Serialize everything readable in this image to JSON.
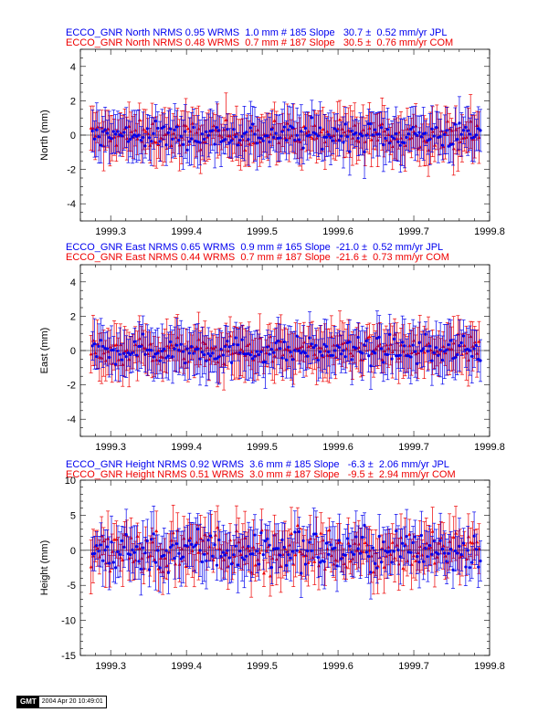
{
  "chart_data": [
    {
      "type": "scatter",
      "title_lines": [
        {
          "text": "ECCO_GNR North NRMS 0.95 WRMS  1.0 mm # 185 Slope   30.7 ±  0.52 mm/yr JPL",
          "color": "#0000ee"
        },
        {
          "text": "ECCO_GNR North NRMS 0.48 WRMS  0.7 mm # 187 Slope   30.5 ±  0.76 mm/yr COM",
          "color": "#ee0000"
        }
      ],
      "ylabel": "North (mm)",
      "xlim": [
        1999.26,
        1999.8
      ],
      "ylim": [
        -5,
        5
      ],
      "xticks": [
        1999.3,
        1999.4,
        1999.5,
        1999.6,
        1999.7,
        1999.8
      ],
      "yticks": [
        -4,
        -2,
        0,
        2,
        4
      ],
      "series": [
        {
          "name": "JPL",
          "color": "#0000ee",
          "marker": "circle",
          "n": 185,
          "nrms": 0.95,
          "wrms_mm": 1.0,
          "slope": 30.7,
          "slope_sigma": 0.52
        },
        {
          "name": "COM",
          "color": "#ee0000",
          "marker": "triangle",
          "n": 187,
          "nrms": 0.48,
          "wrms_mm": 0.7,
          "slope": 30.5,
          "slope_sigma": 0.76
        }
      ],
      "note": "residual time series scattered approximately within ±1.5 mm with error bars ~±1 mm"
    },
    {
      "type": "scatter",
      "title_lines": [
        {
          "text": "ECCO_GNR East NRMS 0.65 WRMS  0.9 mm # 165 Slope  -21.0 ±  0.52 mm/yr JPL",
          "color": "#0000ee"
        },
        {
          "text": "ECCO_GNR East NRMS 0.44 WRMS  0.7 mm # 187 Slope  -21.6 ±  0.73 mm/yr COM",
          "color": "#ee0000"
        }
      ],
      "ylabel": "East (mm)",
      "xlim": [
        1999.26,
        1999.8
      ],
      "ylim": [
        -5,
        5
      ],
      "xticks": [
        1999.3,
        1999.4,
        1999.5,
        1999.6,
        1999.7,
        1999.8
      ],
      "yticks": [
        -4,
        -2,
        0,
        2,
        4
      ],
      "series": [
        {
          "name": "JPL",
          "color": "#0000ee",
          "marker": "circle",
          "n": 165,
          "nrms": 0.65,
          "wrms_mm": 0.9,
          "slope": -21.0,
          "slope_sigma": 0.52
        },
        {
          "name": "COM",
          "color": "#ee0000",
          "marker": "triangle",
          "n": 187,
          "nrms": 0.44,
          "wrms_mm": 0.7,
          "slope": -21.6,
          "slope_sigma": 0.73
        }
      ]
    },
    {
      "type": "scatter",
      "title_lines": [
        {
          "text": "ECCO_GNR Height NRMS 0.92 WRMS  3.6 mm # 185 Slope   -6.3 ±  2.06 mm/yr JPL",
          "color": "#0000ee"
        },
        {
          "text": "ECCO_GNR Height NRMS 0.51 WRMS  3.0 mm # 187 Slope   -9.5 ±  2.94 mm/yr COM",
          "color": "#ee0000"
        }
      ],
      "ylabel": "Height (mm)",
      "xlim": [
        1999.26,
        1999.8
      ],
      "ylim": [
        -15,
        10
      ],
      "xticks": [
        1999.3,
        1999.4,
        1999.5,
        1999.6,
        1999.7,
        1999.8
      ],
      "yticks": [
        -15,
        -10,
        -5,
        0,
        5,
        10
      ],
      "series": [
        {
          "name": "JPL",
          "color": "#0000ee",
          "marker": "circle",
          "n": 185,
          "nrms": 0.92,
          "wrms_mm": 3.6,
          "slope": -6.3,
          "slope_sigma": 2.06
        },
        {
          "name": "COM",
          "color": "#ee0000",
          "marker": "triangle",
          "n": 187,
          "nrms": 0.51,
          "wrms_mm": 3.0,
          "slope": -9.5,
          "slope_sigma": 2.94
        }
      ]
    }
  ],
  "footer": {
    "logo": "GMT",
    "timestamp": "2004 Apr 20 10:49:01"
  },
  "colors": {
    "jpl": "#0000ee",
    "com": "#ee0000",
    "axis": "#000000"
  }
}
